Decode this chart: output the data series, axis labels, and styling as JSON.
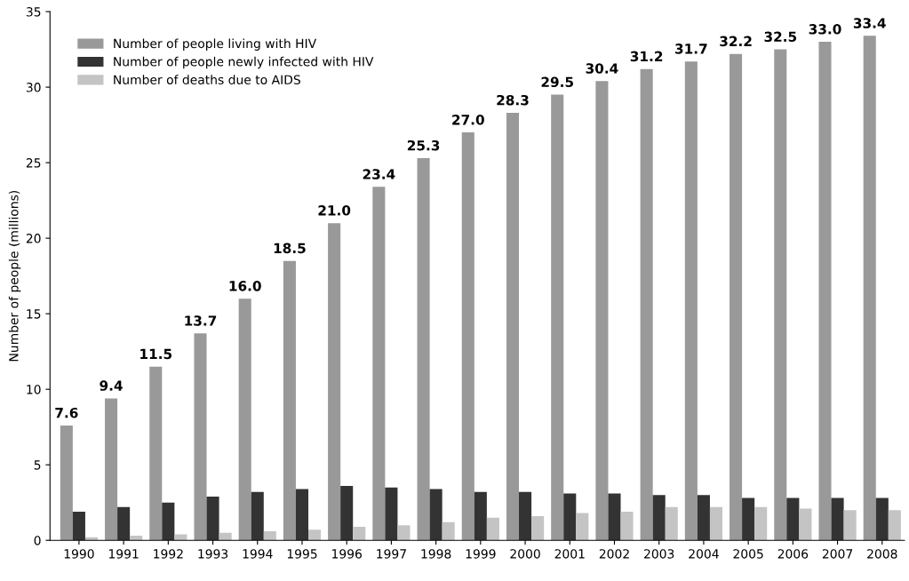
{
  "chart_data": {
    "type": "bar",
    "ylabel": "Number of people (millions)",
    "categories": [
      "1990",
      "1991",
      "1992",
      "1993",
      "1994",
      "1995",
      "1996",
      "1997",
      "1998",
      "1999",
      "2000",
      "2001",
      "2002",
      "2003",
      "2004",
      "2005",
      "2006",
      "2007",
      "2008"
    ],
    "series": [
      {
        "name": "Number of people living with HIV",
        "color": "#999999",
        "values": [
          7.6,
          9.4,
          11.5,
          13.7,
          16.0,
          18.5,
          21.0,
          23.4,
          25.3,
          27.0,
          28.3,
          29.5,
          30.4,
          31.2,
          31.7,
          32.2,
          32.5,
          33.0,
          33.4
        ],
        "value_labels": [
          "7.6",
          "9.4",
          "11.5",
          "13.7",
          "16.0",
          "18.5",
          "21.0",
          "23.4",
          "25.3",
          "27.0",
          "28.3",
          "29.5",
          "30.4",
          "31.2",
          "31.7",
          "32.2",
          "32.5",
          "33.0",
          "33.4"
        ]
      },
      {
        "name": "Number of people newly infected with HIV",
        "color": "#333333",
        "values": [
          1.9,
          2.2,
          2.5,
          2.9,
          3.2,
          3.4,
          3.6,
          3.5,
          3.4,
          3.2,
          3.2,
          3.1,
          3.1,
          3.0,
          3.0,
          2.8,
          2.8,
          2.8,
          2.8
        ]
      },
      {
        "name": "Number of deaths due to AIDS",
        "color": "#c4c4c4",
        "values": [
          0.2,
          0.3,
          0.4,
          0.5,
          0.6,
          0.7,
          0.9,
          1.0,
          1.2,
          1.5,
          1.6,
          1.8,
          1.9,
          2.2,
          2.2,
          2.2,
          2.1,
          2.0,
          2.0
        ]
      }
    ],
    "ylim": [
      0,
      35
    ],
    "yticks": [
      0,
      5,
      10,
      15,
      20,
      25,
      30,
      35
    ],
    "legend": "top left",
    "grid": false
  }
}
